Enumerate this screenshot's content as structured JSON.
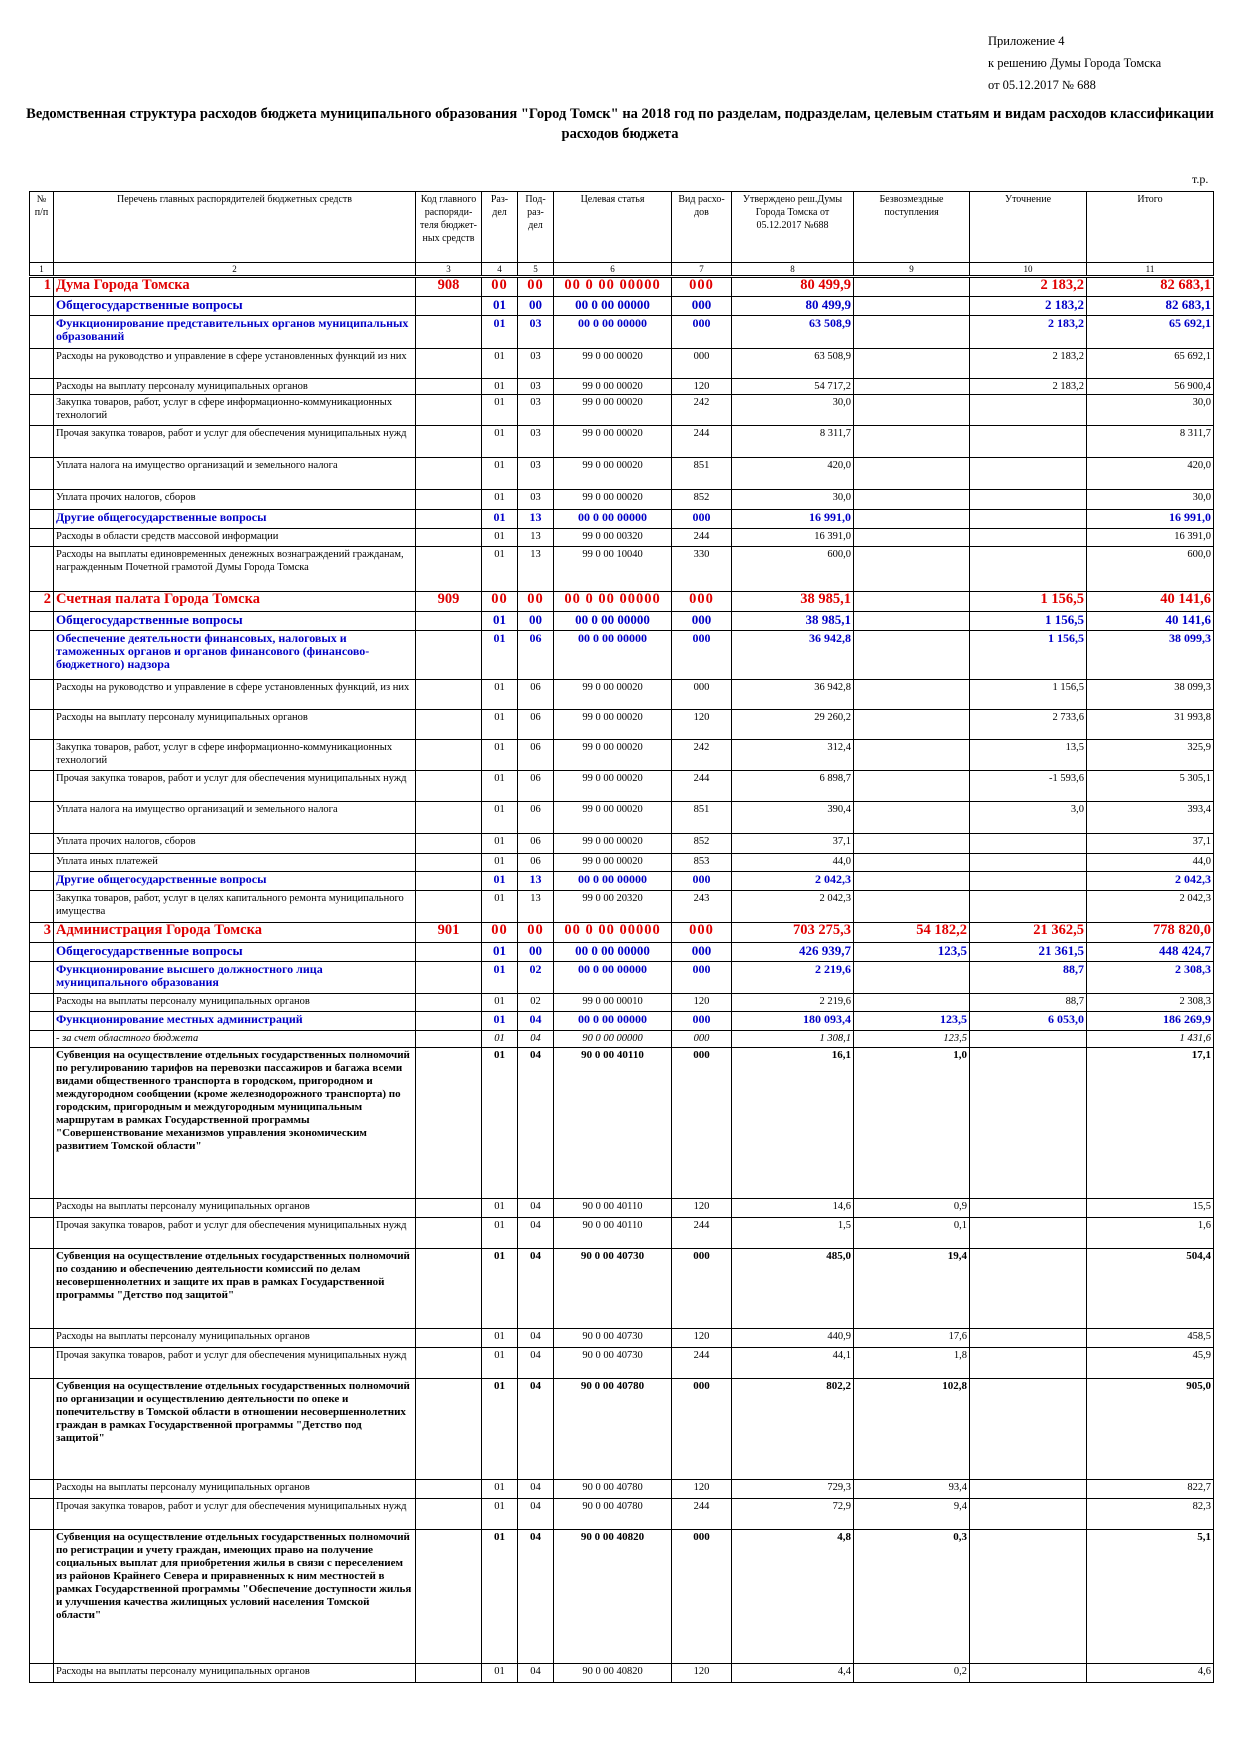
{
  "header_note": [
    "Приложение 4",
    "к решению Думы Города Томска",
    "от 05.12.2017  № 688"
  ],
  "title": "Ведомственная структура расходов бюджета муниципального образования \"Город Томск\" на 2018 год по разделам, подразделам, целевым статьям и видам расходов классификации расходов бюджета",
  "units": "т.р.",
  "columns": [
    "№ п/п",
    "Перечень главных распорядителей бюджетных средств",
    "Код главного распоряди-теля бюджет-ных средств",
    "Раз-дел",
    "Под-раз-дел",
    "Целевая статья",
    "Вид расхо-дов",
    "Утверждено реш.Думы Города Томска от 05.12.2017 №688",
    "Безвозмездные поступления",
    "Уточнение",
    "Итого"
  ],
  "column_numbers": [
    "1",
    "2",
    "3",
    "4",
    "5",
    "6",
    "7",
    "8",
    "9",
    "10",
    "11"
  ],
  "rows": [
    {
      "t": "lvl1",
      "n": "1",
      "name": "Дума Города Томска",
      "code": "908",
      "r": "00",
      "p": "00",
      "cs": "00 0 00 00000",
      "vr": "000",
      "a": "80 499,9",
      "b": "",
      "c": "2 183,2",
      "d": "82 683,1",
      "h": 20
    },
    {
      "t": "lvl2",
      "n": "",
      "name": "Общегосударственные вопросы",
      "code": "",
      "r": "01",
      "p": "00",
      "cs": "00 0 00 00000",
      "vr": "000",
      "a": "80 499,9",
      "b": "",
      "c": "2 183,2",
      "d": "82 683,1",
      "h": 19
    },
    {
      "t": "lvl3",
      "n": "",
      "name": "Функционирование представительных органов муниципальных образований",
      "code": "",
      "r": "01",
      "p": "03",
      "cs": "00 0 00 00000",
      "vr": "000",
      "a": "63 508,9",
      "b": "",
      "c": "2 183,2",
      "d": "65 692,1",
      "h": 33
    },
    {
      "t": "reg",
      "n": "",
      "name": "Расходы на руководство и управление в сфере установленных функций из них",
      "code": "",
      "r": "01",
      "p": "03",
      "cs": "99 0 00 00020",
      "vr": "000",
      "a": "63 508,9",
      "b": "",
      "c": "2 183,2",
      "d": "65 692,1",
      "h": 30
    },
    {
      "t": "reg",
      "n": "",
      "name": "Расходы на выплату персоналу муниципальных органов",
      "code": "",
      "r": "01",
      "p": "03",
      "cs": "99 0 00 00020",
      "vr": "120",
      "a": "54 717,2",
      "b": "",
      "c": "2 183,2",
      "d": "56 900,4",
      "h": 16
    },
    {
      "t": "reg",
      "n": "",
      "name": "Закупка товаров, работ, услуг в сфере информационно-коммуникационных технологий",
      "code": "",
      "r": "01",
      "p": "03",
      "cs": "99 0 00 00020",
      "vr": "242",
      "a": "30,0",
      "b": "",
      "c": "",
      "d": "30,0",
      "h": 31
    },
    {
      "t": "reg",
      "n": "",
      "name": "Прочая закупка товаров, работ и услуг для обеспечения муниципальных нужд",
      "code": "",
      "r": "01",
      "p": "03",
      "cs": "99 0 00 00020",
      "vr": "244",
      "a": "8 311,7",
      "b": "",
      "c": "",
      "d": "8 311,7",
      "h": 32
    },
    {
      "t": "reg",
      "n": "",
      "name": "Уплата налога на имущество организаций и земельного налога",
      "code": "",
      "r": "01",
      "p": "03",
      "cs": "99 0 00 00020",
      "vr": "851",
      "a": "420,0",
      "b": "",
      "c": "",
      "d": "420,0",
      "h": 32
    },
    {
      "t": "reg",
      "n": "",
      "name": "Уплата прочих налогов, сборов",
      "code": "",
      "r": "01",
      "p": "03",
      "cs": "99 0 00 00020",
      "vr": "852",
      "a": "30,0",
      "b": "",
      "c": "",
      "d": "30,0",
      "h": 20
    },
    {
      "t": "lvl3",
      "n": "",
      "name": "Другие общегосударственные вопросы",
      "code": "",
      "r": "01",
      "p": "13",
      "cs": "00 0 00 00000",
      "vr": "000",
      "a": "16 991,0",
      "b": "",
      "c": "",
      "d": "16 991,0",
      "h": 19
    },
    {
      "t": "reg",
      "n": "",
      "name": "Расходы в области средств массовой информации",
      "code": "",
      "r": "01",
      "p": "13",
      "cs": "99 0 00 00320",
      "vr": "244",
      "a": "16 391,0",
      "b": "",
      "c": "",
      "d": "16 391,0",
      "h": 18
    },
    {
      "t": "reg",
      "n": "",
      "name": "Расходы на выплаты единовременных денежных вознаграждений гражданам, награжденным Почетной грамотой Думы Города Томска",
      "code": "",
      "r": "01",
      "p": "13",
      "cs": "99 0 00 10040",
      "vr": "330",
      "a": "600,0",
      "b": "",
      "c": "",
      "d": "600,0",
      "h": 45
    },
    {
      "t": "lvl1",
      "n": "2",
      "name": "Счетная палата Города Томска",
      "code": "909",
      "r": "00",
      "p": "00",
      "cs": "00 0 00 00000",
      "vr": "000",
      "a": "38 985,1",
      "b": "",
      "c": "1 156,5",
      "d": "40 141,6",
      "h": 20
    },
    {
      "t": "lvl2",
      "n": "",
      "name": "Общегосударственные вопросы",
      "code": "",
      "r": "01",
      "p": "00",
      "cs": "00 0 00 00000",
      "vr": "000",
      "a": "38 985,1",
      "b": "",
      "c": "1 156,5",
      "d": "40 141,6",
      "h": 19
    },
    {
      "t": "lvl3",
      "n": "",
      "name": "Обеспечение деятельности финансовых, налоговых и таможенных органов и органов финансового (финансово-бюджетного) надзора",
      "code": "",
      "r": "01",
      "p": "06",
      "cs": "00 0 00 00000",
      "vr": "000",
      "a": "36 942,8",
      "b": "",
      "c": "1 156,5",
      "d": "38 099,3",
      "h": 49
    },
    {
      "t": "reg",
      "n": "",
      "name": "Расходы на руководство и управление в сфере установленных функций, из них",
      "code": "",
      "r": "01",
      "p": "06",
      "cs": "99 0 00 00020",
      "vr": "000",
      "a": "36 942,8",
      "b": "",
      "c": "1 156,5",
      "d": "38 099,3",
      "h": 30
    },
    {
      "t": "reg",
      "n": "",
      "name": "Расходы на выплату персоналу муниципальных органов",
      "code": "",
      "r": "01",
      "p": "06",
      "cs": "99 0 00 00020",
      "vr": "120",
      "a": "29 260,2",
      "b": "",
      "c": "2 733,6",
      "d": "31 993,8",
      "h": 30
    },
    {
      "t": "reg",
      "n": "",
      "name": "Закупка товаров, работ, услуг в сфере информационно-коммуникационных технологий",
      "code": "",
      "r": "01",
      "p": "06",
      "cs": "99 0 00 00020",
      "vr": "242",
      "a": "312,4",
      "b": "",
      "c": "13,5",
      "d": "325,9",
      "h": 31
    },
    {
      "t": "reg",
      "n": "",
      "name": "Прочая закупка товаров, работ и услуг для обеспечения муниципальных нужд",
      "code": "",
      "r": "01",
      "p": "06",
      "cs": "99 0 00 00020",
      "vr": "244",
      "a": "6 898,7",
      "b": "",
      "c": "-1 593,6",
      "d": "5 305,1",
      "h": 31
    },
    {
      "t": "reg",
      "n": "",
      "name": "Уплата налога на имущество организаций и земельного налога",
      "code": "",
      "r": "01",
      "p": "06",
      "cs": "99 0 00 00020",
      "vr": "851",
      "a": "390,4",
      "b": "",
      "c": "3,0",
      "d": "393,4",
      "h": 32
    },
    {
      "t": "reg",
      "n": "",
      "name": "Уплата прочих налогов, сборов",
      "code": "",
      "r": "01",
      "p": "06",
      "cs": "99 0 00 00020",
      "vr": "852",
      "a": "37,1",
      "b": "",
      "c": "",
      "d": "37,1",
      "h": 20
    },
    {
      "t": "reg",
      "n": "",
      "name": "Уплата иных платежей",
      "code": "",
      "r": "01",
      "p": "06",
      "cs": "99 0 00 00020",
      "vr": "853",
      "a": "44,0",
      "b": "",
      "c": "",
      "d": "44,0",
      "h": 18
    },
    {
      "t": "lvl3",
      "n": "",
      "name": "Другие общегосударственные вопросы",
      "code": "",
      "r": "01",
      "p": "13",
      "cs": "00 0 00 00000",
      "vr": "000",
      "a": "2 042,3",
      "b": "",
      "c": "",
      "d": "2 042,3",
      "h": 19
    },
    {
      "t": "reg",
      "n": "",
      "name": "Закупка товаров, работ, услуг в целях капитального ремонта муниципального имущества",
      "code": "",
      "r": "01",
      "p": "13",
      "cs": "99 0 00 20320",
      "vr": "243",
      "a": "2 042,3",
      "b": "",
      "c": "",
      "d": "2 042,3",
      "h": 32
    },
    {
      "t": "lvl1",
      "n": "3",
      "name": "Администрация Города Томска",
      "code": "901",
      "r": "00",
      "p": "00",
      "cs": "00 0 00 00000",
      "vr": "000",
      "a": "703 275,3",
      "b": "54 182,2",
      "c": "21 362,5",
      "d": "778 820,0",
      "h": 20
    },
    {
      "t": "lvl2",
      "n": "",
      "name": "Общегосударственные вопросы",
      "code": "",
      "r": "01",
      "p": "00",
      "cs": "00 0 00 00000",
      "vr": "000",
      "a": "426 939,7",
      "b": "123,5",
      "c": "21 361,5",
      "d": "448 424,7",
      "h": 19
    },
    {
      "t": "lvl3",
      "n": "",
      "name": "Функционирование высшего должностного лица муниципального образования",
      "code": "",
      "r": "01",
      "p": "02",
      "cs": "00 0 00 00000",
      "vr": "000",
      "a": "2 219,6",
      "b": "",
      "c": "88,7",
      "d": "2 308,3",
      "h": 32
    },
    {
      "t": "reg",
      "n": "",
      "name": "Расходы на выплаты персоналу муниципальных органов",
      "code": "",
      "r": "01",
      "p": "02",
      "cs": "99 0 00 00010",
      "vr": "120",
      "a": "2 219,6",
      "b": "",
      "c": "88,7",
      "d": "2 308,3",
      "h": 18
    },
    {
      "t": "lvl3",
      "n": "",
      "name": "Функционирование местных администраций",
      "code": "",
      "r": "01",
      "p": "04",
      "cs": "00 0 00 00000",
      "vr": "000",
      "a": "180 093,4",
      "b": "123,5",
      "c": "6 053,0",
      "d": "186 269,9",
      "h": 19
    },
    {
      "t": "italic",
      "n": "",
      "name": "- за счет областного бюджета",
      "code": "",
      "r": "01",
      "p": "04",
      "cs": "90 0 00 00000",
      "vr": "000",
      "a": "1 308,1",
      "b": "123,5",
      "c": "",
      "d": "1 431,6",
      "h": 17
    },
    {
      "t": "bold",
      "n": "",
      "name": "Субвенция на осуществление отдельных государственных полномочий по регулированию тарифов на перевозки пассажиров и багажа всеми видами общественного транспорта в городском, пригородном и междугородном сообщении (кроме железнодорожного транспорта) по городским, пригородным и междугородным муниципальным маршрутам в рамках Государственной программы \"Совершенствование механизмов управления экономическим развитием Томской области\"",
      "code": "",
      "r": "01",
      "p": "04",
      "cs": "90 0 00 40110",
      "vr": "000",
      "a": "16,1",
      "b": "1,0",
      "c": "",
      "d": "17,1",
      "h": 151
    },
    {
      "t": "reg",
      "n": "",
      "name": "Расходы на выплаты персоналу муниципальных органов",
      "code": "",
      "r": "01",
      "p": "04",
      "cs": "90 0 00 40110",
      "vr": "120",
      "a": "14,6",
      "b": "0,9",
      "c": "",
      "d": "15,5",
      "h": 19
    },
    {
      "t": "reg",
      "n": "",
      "name": "Прочая закупка товаров, работ и услуг для обеспечения муниципальных нужд",
      "code": "",
      "r": "01",
      "p": "04",
      "cs": "90 0 00 40110",
      "vr": "244",
      "a": "1,5",
      "b": "0,1",
      "c": "",
      "d": "1,6",
      "h": 31
    },
    {
      "t": "bold",
      "n": "",
      "name": "Субвенция на осуществление отдельных государственных полномочий по созданию и обеспечению деятельности комиссий по делам несовершеннолетних и защите их прав в рамках Государственной программы \"Детство под защитой\"",
      "code": "",
      "r": "01",
      "p": "04",
      "cs": "90 0 00 40730",
      "vr": "000",
      "a": "485,0",
      "b": "19,4",
      "c": "",
      "d": "504,4",
      "h": 80
    },
    {
      "t": "reg",
      "n": "",
      "name": "Расходы на выплаты персоналу муниципальных органов",
      "code": "",
      "r": "01",
      "p": "04",
      "cs": "90 0 00 40730",
      "vr": "120",
      "a": "440,9",
      "b": "17,6",
      "c": "",
      "d": "458,5",
      "h": 19
    },
    {
      "t": "reg",
      "n": "",
      "name": "Прочая закупка товаров, работ и услуг для обеспечения муниципальных нужд",
      "code": "",
      "r": "01",
      "p": "04",
      "cs": "90 0 00 40730",
      "vr": "244",
      "a": "44,1",
      "b": "1,8",
      "c": "",
      "d": "45,9",
      "h": 31
    },
    {
      "t": "bold",
      "n": "",
      "name": "Субвенция на осуществление отдельных государственных полномочий по организации и осуществлению деятельности по опеке и попечительству в Томской области в отношении несовершеннолетних граждан в рамках Государственной программы \"Детство под защитой\"",
      "code": "",
      "r": "01",
      "p": "04",
      "cs": "90 0 00 40780",
      "vr": "000",
      "a": "802,2",
      "b": "102,8",
      "c": "",
      "d": "905,0",
      "h": 101
    },
    {
      "t": "reg",
      "n": "",
      "name": "Расходы на выплаты персоналу муниципальных органов",
      "code": "",
      "r": "01",
      "p": "04",
      "cs": "90 0 00 40780",
      "vr": "120",
      "a": "729,3",
      "b": "93,4",
      "c": "",
      "d": "822,7",
      "h": 19
    },
    {
      "t": "reg",
      "n": "",
      "name": "Прочая закупка товаров, работ и услуг для обеспечения муниципальных нужд",
      "code": "",
      "r": "01",
      "p": "04",
      "cs": "90 0 00 40780",
      "vr": "244",
      "a": "72,9",
      "b": "9,4",
      "c": "",
      "d": "82,3",
      "h": 31
    },
    {
      "t": "bold",
      "n": "",
      "name": "Субвенция на осуществление отдельных государственных полномочий по регистрации и учету граждан, имеющих право на получение социальных выплат для приобретения жилья в связи с переселением из районов Крайнего Севера и приравненных к ним местностей в рамках Государственной программы \"Обеспечение доступности жилья и улучшения качества жилищных условий населения Томской области\"",
      "code": "",
      "r": "01",
      "p": "04",
      "cs": "90 0 00 40820",
      "vr": "000",
      "a": "4,8",
      "b": "0,3",
      "c": "",
      "d": "5,1",
      "h": 134
    },
    {
      "t": "reg",
      "n": "",
      "name": "Расходы на выплаты персоналу муниципальных органов",
      "code": "",
      "r": "01",
      "p": "04",
      "cs": "90 0 00 40820",
      "vr": "120",
      "a": "4,4",
      "b": "0,2",
      "c": "",
      "d": "4,6",
      "h": 19
    }
  ]
}
